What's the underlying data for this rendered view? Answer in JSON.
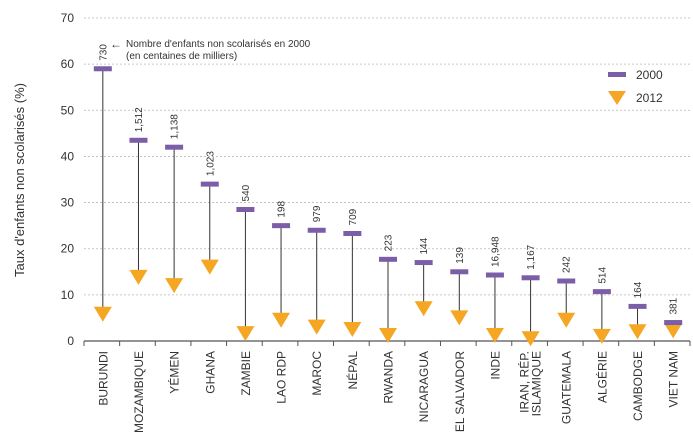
{
  "chart_data": {
    "type": "dumbbell",
    "ylabel": "Taux d'enfants non scolarisés (%)",
    "ylim": [
      0,
      70
    ],
    "yticks": [
      0,
      10,
      20,
      30,
      40,
      50,
      60,
      70
    ],
    "grid": "horizontal dashed",
    "legend_position": "top-right",
    "note_line1": "Nombre d'enfants non scolarisés en 2000",
    "note_line2": "(en centaines de milliers)",
    "note_arrow": "←",
    "categories": [
      [
        "BURUNDI"
      ],
      [
        "MOZAMBIQUE"
      ],
      [
        "YÉMEN"
      ],
      [
        "GHANA"
      ],
      [
        "ZAMBIE"
      ],
      [
        "LAO RDP"
      ],
      [
        "MAROC"
      ],
      [
        "NÉPAL"
      ],
      [
        "RWANDA"
      ],
      [
        "NICARAGUA"
      ],
      [
        "EL SALVADOR"
      ],
      [
        "INDE"
      ],
      [
        "IRAN, RÉP.",
        "ISLAMIQUE"
      ],
      [
        "GUATEMALA"
      ],
      [
        "ALGÉRIE"
      ],
      [
        "CAMBODGE"
      ],
      [
        "VIET NAM"
      ]
    ],
    "series": [
      {
        "name": "2000",
        "color": "#7b5ea7",
        "marker": "bar",
        "values": [
          59,
          43.5,
          42,
          34,
          28.5,
          25,
          24,
          23.3,
          17.7,
          17,
          15,
          14.3,
          13.7,
          13,
          10.7,
          7.5,
          4
        ]
      },
      {
        "name": "2012",
        "color": "#f5a623",
        "marker": "triangle-down",
        "values": [
          5.8,
          13.8,
          12,
          16,
          1.6,
          4.5,
          3,
          2.5,
          1.2,
          7,
          5,
          1.2,
          0.5,
          4.5,
          1,
          2,
          2.2
        ]
      }
    ],
    "annotations": [
      "730",
      "1,512",
      "1,138",
      "1,023",
      "540",
      "198",
      "979",
      "709",
      "223",
      "144",
      "139",
      "16,948",
      "1,167",
      "242",
      "514",
      "164",
      "381"
    ]
  }
}
